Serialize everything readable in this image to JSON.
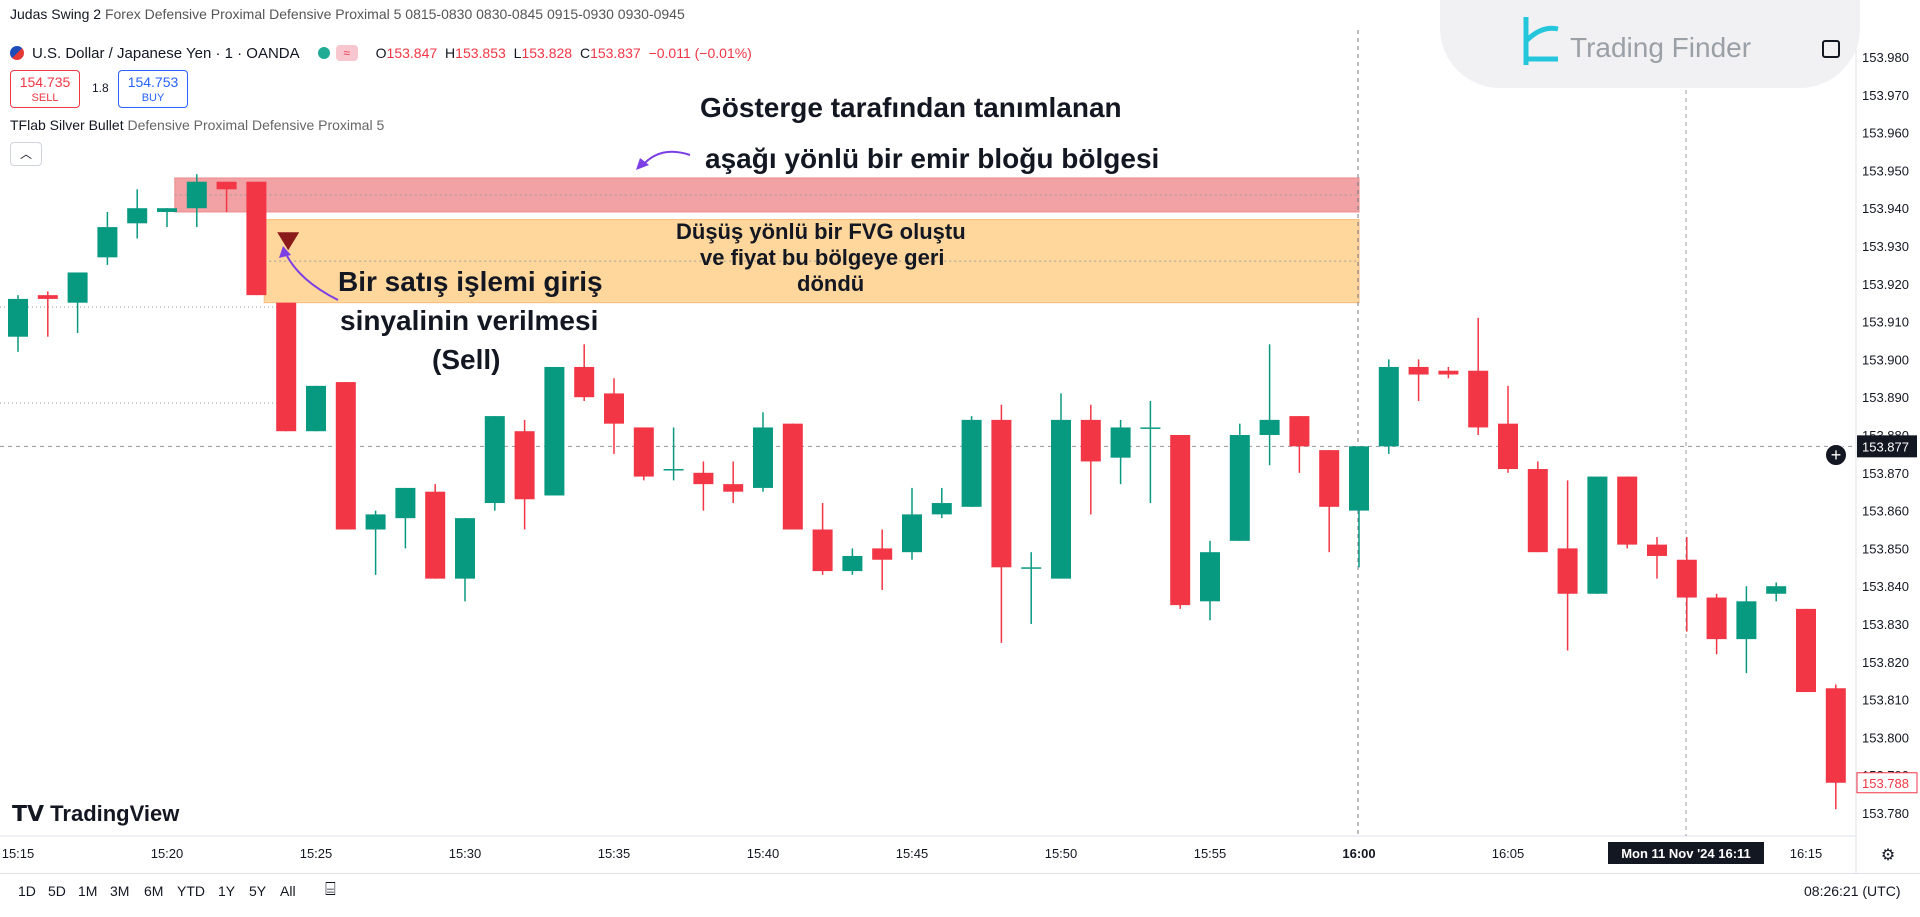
{
  "header": {
    "title": "Judas Swing 2",
    "subtitle": "Forex Defensive Proximal Defensive Proximal 5 0815-0830 0830-0845 0915-0930 0930-0945"
  },
  "symbol": {
    "name": "U.S. Dollar / Japanese Yen · 1 · OANDA",
    "ohlc": [
      {
        "k": "O",
        "v": "153.847"
      },
      {
        "k": "H",
        "v": "153.853"
      },
      {
        "k": "L",
        "v": "153.828"
      },
      {
        "k": "C",
        "v": "153.837"
      }
    ],
    "change": "−0.011 (−0.01%)"
  },
  "trade": {
    "sell_price": "154.735",
    "sell_label": "SELL",
    "spread": "1.8",
    "buy_price": "154.753",
    "buy_label": "BUY"
  },
  "indicator": {
    "name": "TFlab Silver Bullet",
    "params": "Defensive Proximal Defensive Proximal 5"
  },
  "watermark": {
    "brand": "Trading Finder"
  },
  "annotations": {
    "orderblock_line1": "Gösterge tarafından tanımlanan",
    "orderblock_line2": "aşağı yönlü bir emir bloğu bölgesi",
    "fvg_line1": "Düşüş yönlü bir FVG oluştu",
    "fvg_line2": "ve fiyat bu bölgeye geri",
    "fvg_line3": "döndü",
    "sell_line1": "Bir satış işlemi giriş",
    "sell_line2": "sinyalinin verilmesi",
    "sell_line3": "(Sell)"
  },
  "branding": {
    "tradingview": "TradingView"
  },
  "bottom": {
    "ranges": [
      "1D",
      "5D",
      "1M",
      "3M",
      "6M",
      "YTD",
      "1Y",
      "5Y",
      "All"
    ],
    "clock": "08:26:21 (UTC)"
  },
  "colors": {
    "up": "#089981",
    "down": "#f23645",
    "orderblock": "#ef8a8e",
    "fvg": "#ffcf8a",
    "current_label": "#131722",
    "last_price_label": "#f23645"
  },
  "chart_data": {
    "type": "candlestick",
    "y_axis": {
      "min": 153.775,
      "max": 153.985,
      "ticks": [
        "153.980",
        "153.970",
        "153.960",
        "153.950",
        "153.940",
        "153.930",
        "153.920",
        "153.910",
        "153.900",
        "153.890",
        "153.880",
        "153.870",
        "153.860",
        "153.850",
        "153.840",
        "153.830",
        "153.820",
        "153.810",
        "153.800",
        "153.790",
        "153.780"
      ]
    },
    "x_axis": {
      "ticks": [
        "15:15",
        "15:20",
        "15:25",
        "15:30",
        "15:35",
        "15:40",
        "15:45",
        "15:50",
        "15:55",
        "16:00",
        "16:05",
        "16:10",
        "16:15"
      ],
      "crosshair_label": "Mon 11 Nov '24  16:11"
    },
    "current_price_label": "153.877",
    "last_price_label": "153.788",
    "zones": [
      {
        "name": "orderblock",
        "from": "15:21",
        "to": "16:00",
        "low": 153.939,
        "high": 153.948
      },
      {
        "name": "fvg",
        "from": "15:24",
        "to": "16:00",
        "low": 153.915,
        "high": 153.937
      }
    ],
    "sell_signal": {
      "time": "15:24",
      "price": 153.931
    },
    "candles": [
      {
        "o": 153.906,
        "h": 153.917,
        "l": 153.902,
        "c": 153.916
      },
      {
        "o": 153.917,
        "h": 153.918,
        "l": 153.906,
        "c": 153.916
      },
      {
        "o": 153.915,
        "h": 153.923,
        "l": 153.907,
        "c": 153.923
      },
      {
        "o": 153.927,
        "h": 153.939,
        "l": 153.925,
        "c": 153.935
      },
      {
        "o": 153.936,
        "h": 153.945,
        "l": 153.932,
        "c": 153.94
      },
      {
        "o": 153.939,
        "h": 153.94,
        "l": 153.935,
        "c": 153.94
      },
      {
        "o": 153.94,
        "h": 153.949,
        "l": 153.935,
        "c": 153.947
      },
      {
        "o": 153.947,
        "h": 153.947,
        "l": 153.939,
        "c": 153.945
      },
      {
        "o": 153.947,
        "h": 153.947,
        "l": 153.917,
        "c": 153.917
      },
      {
        "o": 153.915,
        "h": 153.915,
        "l": 153.881,
        "c": 153.881
      },
      {
        "o": 153.881,
        "h": 153.893,
        "l": 153.881,
        "c": 153.893
      },
      {
        "o": 153.894,
        "h": 153.894,
        "l": 153.855,
        "c": 153.855
      },
      {
        "o": 153.855,
        "h": 153.86,
        "l": 153.843,
        "c": 153.859
      },
      {
        "o": 153.858,
        "h": 153.866,
        "l": 153.85,
        "c": 153.866
      },
      {
        "o": 153.865,
        "h": 153.867,
        "l": 153.842,
        "c": 153.842
      },
      {
        "o": 153.842,
        "h": 153.858,
        "l": 153.836,
        "c": 153.858
      },
      {
        "o": 153.862,
        "h": 153.885,
        "l": 153.86,
        "c": 153.885
      },
      {
        "o": 153.881,
        "h": 153.884,
        "l": 153.855,
        "c": 153.863
      },
      {
        "o": 153.864,
        "h": 153.898,
        "l": 153.864,
        "c": 153.898
      },
      {
        "o": 153.898,
        "h": 153.904,
        "l": 153.889,
        "c": 153.89
      },
      {
        "o": 153.891,
        "h": 153.895,
        "l": 153.875,
        "c": 153.883
      },
      {
        "o": 153.882,
        "h": 153.882,
        "l": 153.868,
        "c": 153.869
      },
      {
        "o": 153.871,
        "h": 153.882,
        "l": 153.868,
        "c": 153.871
      },
      {
        "o": 153.87,
        "h": 153.873,
        "l": 153.86,
        "c": 153.867
      },
      {
        "o": 153.867,
        "h": 153.873,
        "l": 153.862,
        "c": 153.865
      },
      {
        "o": 153.866,
        "h": 153.886,
        "l": 153.865,
        "c": 153.882
      },
      {
        "o": 153.883,
        "h": 153.883,
        "l": 153.855,
        "c": 153.855
      },
      {
        "o": 153.855,
        "h": 153.862,
        "l": 153.843,
        "c": 153.844
      },
      {
        "o": 153.844,
        "h": 153.85,
        "l": 153.843,
        "c": 153.848
      },
      {
        "o": 153.85,
        "h": 153.855,
        "l": 153.839,
        "c": 153.847
      },
      {
        "o": 153.849,
        "h": 153.866,
        "l": 153.847,
        "c": 153.859
      },
      {
        "o": 153.859,
        "h": 153.866,
        "l": 153.858,
        "c": 153.862
      },
      {
        "o": 153.861,
        "h": 153.885,
        "l": 153.861,
        "c": 153.884
      },
      {
        "o": 153.884,
        "h": 153.888,
        "l": 153.825,
        "c": 153.845
      },
      {
        "o": 153.845,
        "h": 153.849,
        "l": 153.83,
        "c": 153.845
      },
      {
        "o": 153.842,
        "h": 153.891,
        "l": 153.842,
        "c": 153.884
      },
      {
        "o": 153.884,
        "h": 153.888,
        "l": 153.859,
        "c": 153.873
      },
      {
        "o": 153.874,
        "h": 153.884,
        "l": 153.867,
        "c": 153.882
      },
      {
        "o": 153.882,
        "h": 153.889,
        "l": 153.862,
        "c": 153.882
      },
      {
        "o": 153.88,
        "h": 153.88,
        "l": 153.834,
        "c": 153.835
      },
      {
        "o": 153.836,
        "h": 153.852,
        "l": 153.831,
        "c": 153.849
      },
      {
        "o": 153.852,
        "h": 153.883,
        "l": 153.852,
        "c": 153.88
      },
      {
        "o": 153.88,
        "h": 153.904,
        "l": 153.872,
        "c": 153.884
      },
      {
        "o": 153.885,
        "h": 153.885,
        "l": 153.87,
        "c": 153.877
      },
      {
        "o": 153.876,
        "h": 153.876,
        "l": 153.849,
        "c": 153.861
      },
      {
        "o": 153.86,
        "h": 153.877,
        "l": 153.845,
        "c": 153.877
      },
      {
        "o": 153.877,
        "h": 153.9,
        "l": 153.875,
        "c": 153.898
      },
      {
        "o": 153.898,
        "h": 153.9,
        "l": 153.889,
        "c": 153.896
      },
      {
        "o": 153.897,
        "h": 153.898,
        "l": 153.895,
        "c": 153.896
      },
      {
        "o": 153.897,
        "h": 153.911,
        "l": 153.88,
        "c": 153.882
      },
      {
        "o": 153.883,
        "h": 153.893,
        "l": 153.87,
        "c": 153.871
      },
      {
        "o": 153.871,
        "h": 153.873,
        "l": 153.849,
        "c": 153.849
      },
      {
        "o": 153.85,
        "h": 153.868,
        "l": 153.823,
        "c": 153.838
      },
      {
        "o": 153.838,
        "h": 153.869,
        "l": 153.838,
        "c": 153.869
      },
      {
        "o": 153.869,
        "h": 153.869,
        "l": 153.85,
        "c": 153.851
      },
      {
        "o": 153.851,
        "h": 153.853,
        "l": 153.842,
        "c": 153.848
      },
      {
        "o": 153.847,
        "h": 153.853,
        "l": 153.828,
        "c": 153.837
      },
      {
        "o": 153.837,
        "h": 153.838,
        "l": 153.822,
        "c": 153.826
      },
      {
        "o": 153.826,
        "h": 153.84,
        "l": 153.817,
        "c": 153.836
      },
      {
        "o": 153.838,
        "h": 153.841,
        "l": 153.836,
        "c": 153.84
      },
      {
        "o": 153.834,
        "h": 153.834,
        "l": 153.812,
        "c": 153.812
      },
      {
        "o": 153.813,
        "h": 153.814,
        "l": 153.781,
        "c": 153.788
      }
    ]
  }
}
